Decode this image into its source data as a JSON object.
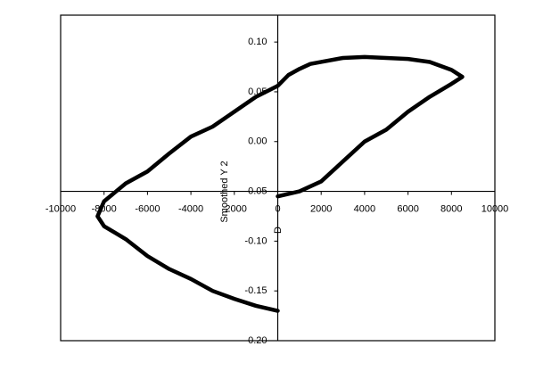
{
  "chart_data": {
    "type": "line",
    "x_label": "D",
    "y_label": "Smoothed Y 2",
    "x": [
      0,
      1000,
      2000,
      3000,
      4000,
      5000,
      6000,
      7000,
      8000,
      8500,
      8000,
      7000,
      6000,
      5000,
      4000,
      3000,
      2000,
      1500,
      1000,
      500,
      0,
      -1000,
      -2000,
      -3000,
      -4000,
      -5000,
      -6000,
      -7000,
      -8000,
      -8300,
      -8000,
      -7000,
      -6000,
      -5000,
      -4000,
      -3000,
      -2000,
      -1000,
      0
    ],
    "series": [
      {
        "color": "#000000",
        "values": [
          -0.055,
          -0.05,
          -0.04,
          -0.02,
          0.0,
          0.012,
          0.03,
          0.045,
          0.058,
          0.065,
          0.072,
          0.08,
          0.083,
          0.084,
          0.085,
          0.084,
          0.08,
          0.078,
          0.073,
          0.067,
          0.056,
          0.045,
          0.03,
          0.015,
          0.005,
          -0.012,
          -0.03,
          -0.042,
          -0.06,
          -0.075,
          -0.085,
          -0.098,
          -0.115,
          -0.128,
          -0.138,
          -0.15,
          -0.158,
          -0.165,
          -0.17
        ]
      }
    ],
    "xlim": [
      -10000,
      10000
    ],
    "ylim": [
      -0.2,
      0.127
    ],
    "xticks": [
      -10000,
      -8000,
      -6000,
      -4000,
      -2000,
      0,
      2000,
      4000,
      6000,
      8000,
      10000
    ],
    "yticks": [
      {
        "value": 0.1,
        "label": "0.10"
      },
      {
        "value": 0.05,
        "label": "0.05"
      },
      {
        "value": 0,
        "label": "0.00"
      },
      {
        "value": -0.05,
        "label": "-0.05"
      },
      {
        "value": -0.1,
        "label": "-0.10"
      },
      {
        "value": -0.15,
        "label": "-0.15"
      },
      {
        "value": -0.2,
        "label": "-0.20"
      }
    ],
    "x_axis_at": -0.05,
    "y_axis_at": 0,
    "grid": false
  }
}
